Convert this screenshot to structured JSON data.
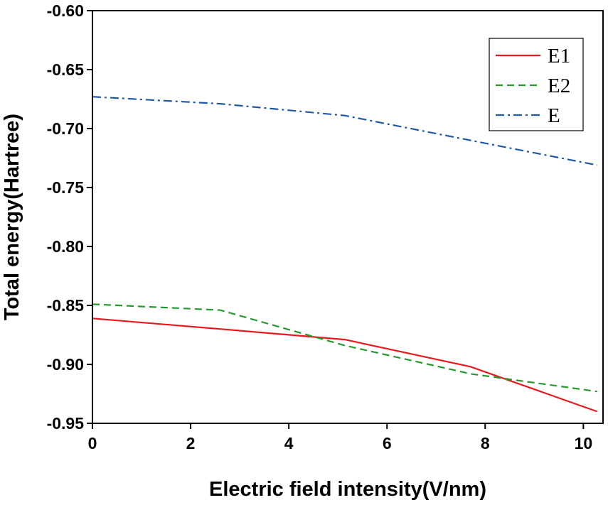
{
  "chart_data": {
    "type": "line",
    "title": "",
    "xlabel": "Electric field intensity(V/nm)",
    "ylabel": "Total energy(Hartree)",
    "xlim": [
      0,
      10.4
    ],
    "ylim": [
      -0.95,
      -0.6
    ],
    "xticks": [
      0,
      2,
      4,
      6,
      8,
      10
    ],
    "yticks": [
      -0.6,
      -0.65,
      -0.7,
      -0.75,
      -0.8,
      -0.85,
      -0.9,
      -0.95
    ],
    "xtick_labels": [
      "0",
      "2",
      "4",
      "6",
      "8",
      "10"
    ],
    "ytick_labels": [
      "-0.60",
      "-0.65",
      "-0.70",
      "-0.75",
      "-0.80",
      "-0.85",
      "-0.90",
      "-0.95"
    ],
    "grid": false,
    "legend_position": "top-right",
    "series": [
      {
        "name": "E1",
        "color": "#e8191d",
        "dash": "solid",
        "x": [
          0,
          2.6,
          5.14,
          7.7,
          10.28
        ],
        "y": [
          -0.861,
          -0.87,
          -0.879,
          -0.902,
          -0.94
        ]
      },
      {
        "name": "E2",
        "color": "#25992e",
        "dash": "dashed",
        "x": [
          0,
          2.6,
          5.14,
          7.7,
          10.28
        ],
        "y": [
          -0.849,
          -0.854,
          -0.884,
          -0.908,
          -0.923
        ]
      },
      {
        "name": "E",
        "color": "#1f5aa8",
        "dash": "dashdot",
        "x": [
          0,
          2.6,
          5.14,
          7.7,
          10.28
        ],
        "y": [
          -0.673,
          -0.679,
          -0.689,
          -0.71,
          -0.731
        ]
      }
    ]
  }
}
